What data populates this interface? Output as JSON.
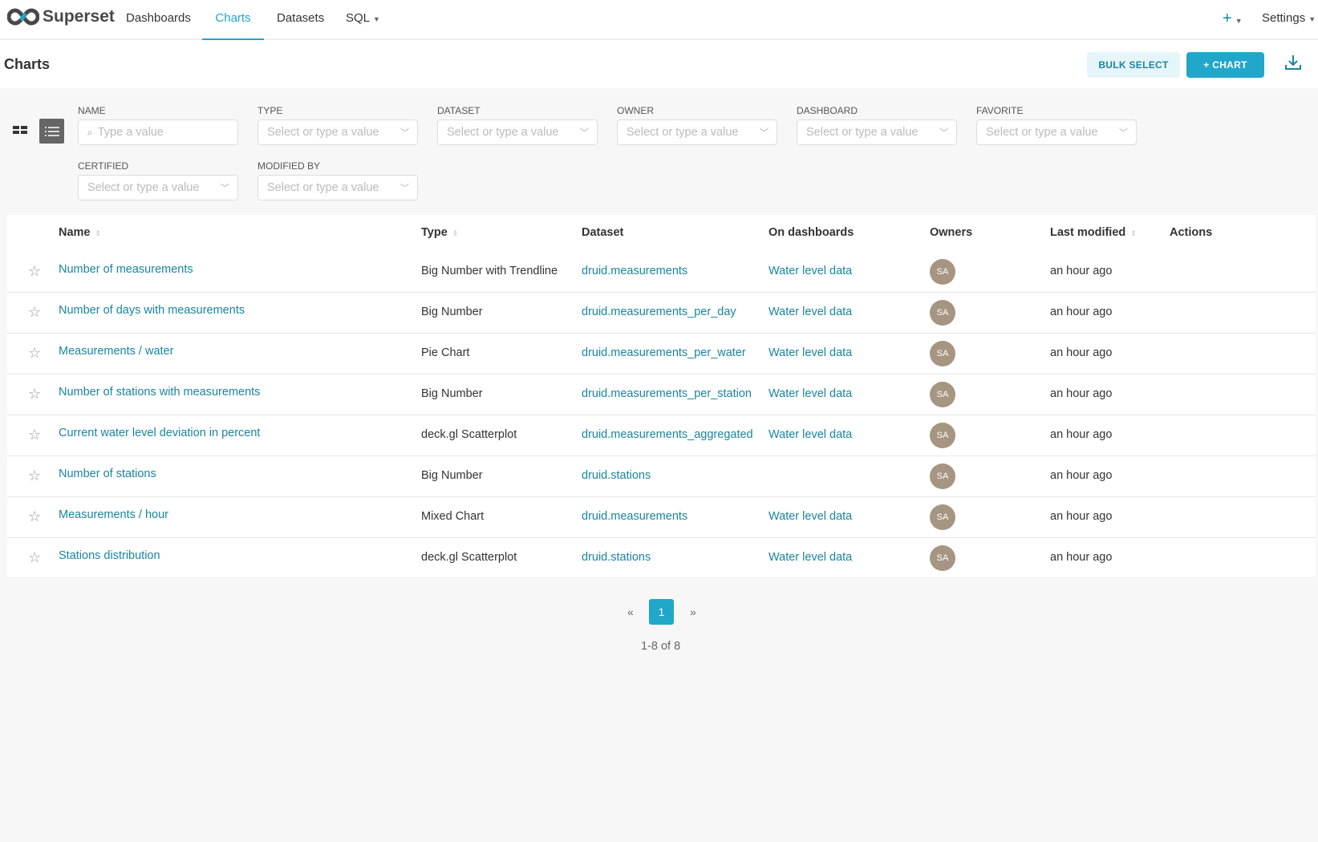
{
  "nav": {
    "brand": "Superset",
    "items": [
      {
        "label": "Dashboards"
      },
      {
        "label": "Charts",
        "active": true
      },
      {
        "label": "Datasets"
      },
      {
        "label": "SQL"
      }
    ],
    "plus": "+",
    "settings": "Settings"
  },
  "header": {
    "title": "Charts",
    "bulk_select": "BULK SELECT",
    "add_chart": "+ CHART"
  },
  "filters": [
    {
      "label": "NAME",
      "placeholder": "Type a value"
    },
    {
      "label": "TYPE",
      "placeholder": "Select or type a value"
    },
    {
      "label": "DATASET",
      "placeholder": "Select or type a value"
    },
    {
      "label": "OWNER",
      "placeholder": "Select or type a value"
    },
    {
      "label": "DASHBOARD",
      "placeholder": "Select or type a value"
    },
    {
      "label": "FAVORITE",
      "placeholder": "Select or type a value"
    },
    {
      "label": "CERTIFIED",
      "placeholder": "Select or type a value"
    },
    {
      "label": "MODIFIED BY",
      "placeholder": "Select or type a value"
    }
  ],
  "table": {
    "columns": [
      "Name",
      "Type",
      "Dataset",
      "On dashboards",
      "Owners",
      "Last modified",
      "Actions"
    ],
    "rows": [
      {
        "name": "Number of measurements",
        "type": "Big Number with Trendline",
        "dataset": "druid.measurements",
        "dashboard": "Water level data",
        "owner": "SA",
        "modified": "an hour ago"
      },
      {
        "name": "Number of days with measurements",
        "type": "Big Number",
        "dataset": "druid.measurements_per_day",
        "dashboard": "Water level data",
        "owner": "SA",
        "modified": "an hour ago"
      },
      {
        "name": "Measurements / water",
        "type": "Pie Chart",
        "dataset": "druid.measurements_per_water",
        "dashboard": "Water level data",
        "owner": "SA",
        "modified": "an hour ago"
      },
      {
        "name": "Number of stations with measurements",
        "type": "Big Number",
        "dataset": "druid.measurements_per_station",
        "dashboard": "Water level data",
        "owner": "SA",
        "modified": "an hour ago"
      },
      {
        "name": "Current water level deviation in percent",
        "type": "deck.gl Scatterplot",
        "dataset": "druid.measurements_aggregated",
        "dashboard": "Water level data",
        "owner": "SA",
        "modified": "an hour ago"
      },
      {
        "name": "Number of stations",
        "type": "Big Number",
        "dataset": "druid.stations",
        "dashboard": "",
        "owner": "SA",
        "modified": "an hour ago"
      },
      {
        "name": "Measurements / hour",
        "type": "Mixed Chart",
        "dataset": "druid.measurements",
        "dashboard": "Water level data",
        "owner": "SA",
        "modified": "an hour ago"
      },
      {
        "name": "Stations distribution",
        "type": "deck.gl Scatterplot",
        "dataset": "druid.stations",
        "dashboard": "Water level data",
        "owner": "SA",
        "modified": "an hour ago"
      }
    ]
  },
  "pagination": {
    "prev": "«",
    "current": "1",
    "next": "»",
    "summary": "1-8 of 8"
  },
  "colors": {
    "accent": "#20a7c9",
    "link": "#1985a0",
    "avatar": "#a69581"
  }
}
